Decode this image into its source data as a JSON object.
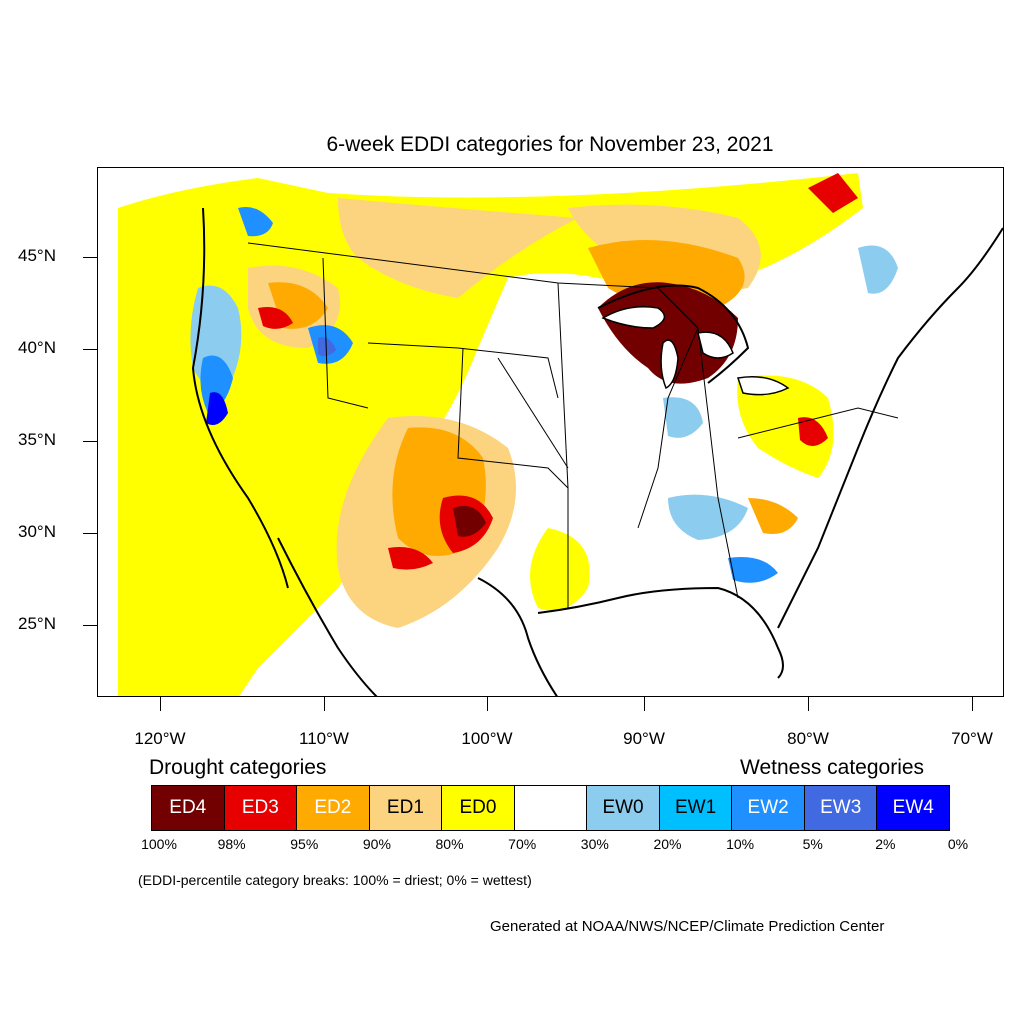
{
  "title": "6-week EDDI categories for November 23, 2021",
  "lat_labels": [
    "45°N",
    "40°N",
    "35°N",
    "30°N",
    "25°N"
  ],
  "lon_labels": [
    "120°W",
    "110°W",
    "100°W",
    "90°W",
    "80°W",
    "70°W"
  ],
  "drought_heading": "Drought categories",
  "wetness_heading": "Wetness categories",
  "legend": [
    {
      "label": "ED4",
      "color": "#730000",
      "text_color": "#ffffff"
    },
    {
      "label": "ED3",
      "color": "#e60000",
      "text_color": "#ffffff"
    },
    {
      "label": "ED2",
      "color": "#ffaa00",
      "text_color": "#ffffff"
    },
    {
      "label": "ED1",
      "color": "#fcd37f",
      "text_color": "#000000"
    },
    {
      "label": "ED0",
      "color": "#ffff00",
      "text_color": "#000000"
    },
    {
      "label": "",
      "color": "#ffffff",
      "text_color": "#000000"
    },
    {
      "label": "EW0",
      "color": "#8ccdef",
      "text_color": "#000000"
    },
    {
      "label": "EW1",
      "color": "#00bfff",
      "text_color": "#000000"
    },
    {
      "label": "EW2",
      "color": "#1e90ff",
      "text_color": "#ffffff"
    },
    {
      "label": "EW3",
      "color": "#4169e1",
      "text_color": "#ffffff"
    },
    {
      "label": "EW4",
      "color": "#0000ff",
      "text_color": "#ffffff"
    }
  ],
  "percentile_breaks": [
    "100%",
    "98%",
    "95%",
    "90%",
    "80%",
    "70%",
    "30%",
    "20%",
    "10%",
    "5%",
    "2%",
    "0%"
  ],
  "note": "(EDDI-percentile category breaks: 100% = driest; 0% = wettest)",
  "credit": "Generated at NOAA/NWS/NCEP/Climate Prediction Center"
}
